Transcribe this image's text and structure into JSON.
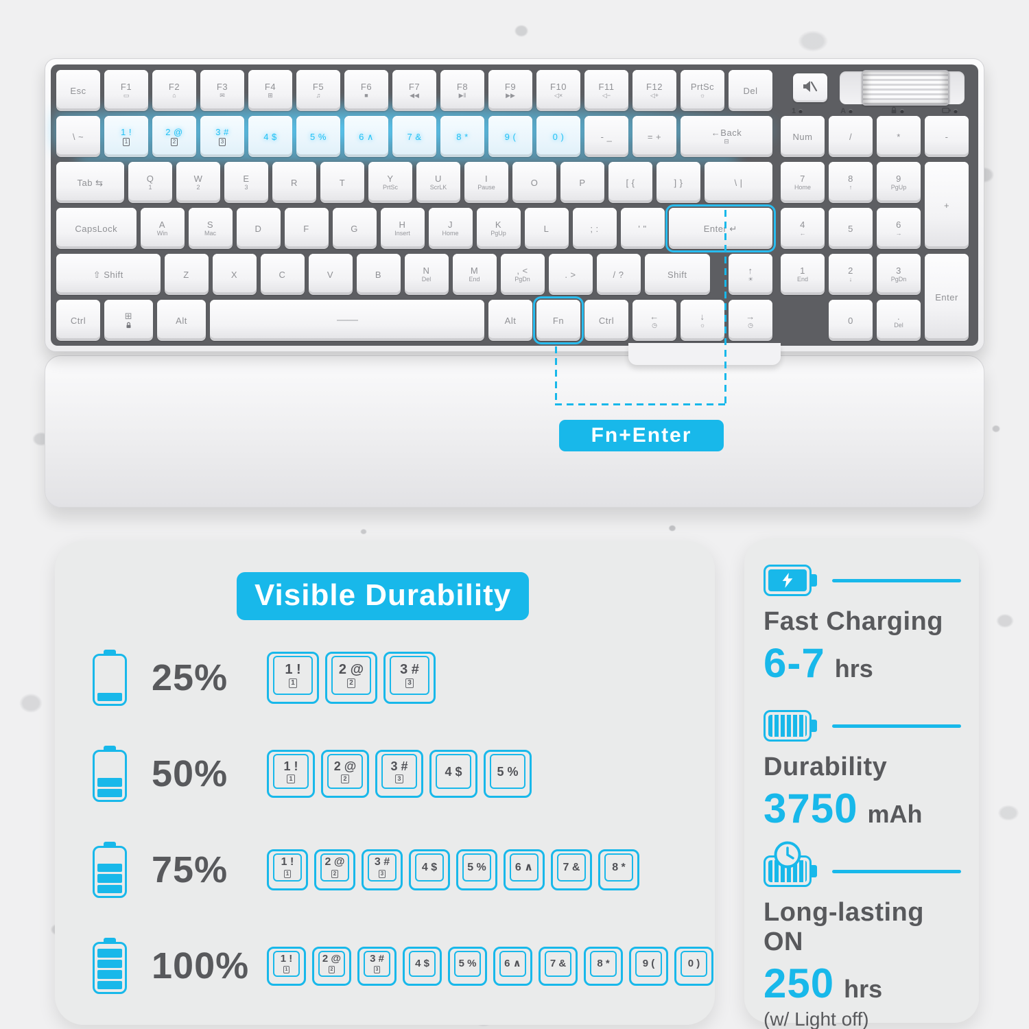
{
  "colors": {
    "accent": "#18b8ea",
    "glow": "#56d0ff",
    "key_text": "#8f9094",
    "dark_text": "#58595c"
  },
  "keyboard": {
    "main_rows": [
      [
        {
          "l": "Esc"
        },
        {
          "l": "F1",
          "s": "▭"
        },
        {
          "l": "F2",
          "s": "⌂"
        },
        {
          "l": "F3",
          "s": "✉"
        },
        {
          "l": "F4",
          "s": "⊞",
          "n": "f4"
        },
        {
          "l": "F5",
          "s": "♫"
        },
        {
          "l": "F6",
          "s": "■"
        },
        {
          "l": "F7",
          "s": "◀◀"
        },
        {
          "l": "F8",
          "s": "▶‖"
        },
        {
          "l": "F9",
          "s": "▶▶"
        },
        {
          "l": "F10",
          "s": "◁×"
        },
        {
          "l": "F11",
          "s": "◁−"
        },
        {
          "l": "F12",
          "s": "◁+"
        },
        {
          "l": "PrtSc",
          "s": "☼"
        },
        {
          "l": "Del"
        }
      ],
      [
        {
          "l": "\\ ~",
          "n": "backslash-tilde"
        },
        {
          "l": "1 !",
          "s": "1",
          "lit": 1,
          "box": 1,
          "n": "1"
        },
        {
          "l": "2 @",
          "s": "2",
          "lit": 1,
          "box": 1,
          "n": "2"
        },
        {
          "l": "3 #",
          "s": "3",
          "lit": 1,
          "box": 1,
          "n": "3"
        },
        {
          "l": "4 $",
          "lit": 1,
          "n": "4"
        },
        {
          "l": "5 %",
          "lit": 1,
          "n": "5"
        },
        {
          "l": "6 ∧",
          "lit": 1,
          "n": "6"
        },
        {
          "l": "7 &",
          "lit": 1,
          "n": "7"
        },
        {
          "l": "8 *",
          "lit": 1,
          "n": "8"
        },
        {
          "l": "9 (",
          "lit": 1,
          "n": "9"
        },
        {
          "l": "0 )",
          "lit": 1,
          "n": "0"
        },
        {
          "l": "- _",
          "n": "minus"
        },
        {
          "l": "= +",
          "n": "equals"
        },
        {
          "l": "←Back",
          "s": "⊟",
          "w": 2,
          "n": "back"
        }
      ],
      [
        {
          "l": "Tab ⇆",
          "w": 1.5,
          "n": "tab"
        },
        {
          "l": "Q",
          "s": "1"
        },
        {
          "l": "W",
          "s": "2"
        },
        {
          "l": "E",
          "s": "3"
        },
        {
          "l": "R"
        },
        {
          "l": "T"
        },
        {
          "l": "Y",
          "s": "PrtSc"
        },
        {
          "l": "U",
          "s": "ScrLK"
        },
        {
          "l": "I",
          "s": "Pause"
        },
        {
          "l": "O"
        },
        {
          "l": "P"
        },
        {
          "l": "[ {",
          "n": "bracket-open"
        },
        {
          "l": "] }",
          "n": "bracket-close"
        },
        {
          "l": "\\ |",
          "w": 1.5,
          "n": "backslash-pipe"
        }
      ],
      [
        {
          "l": "CapsLock",
          "w": 1.75
        },
        {
          "l": "A",
          "s": "Win"
        },
        {
          "l": "S",
          "s": "Mac"
        },
        {
          "l": "D"
        },
        {
          "l": "F"
        },
        {
          "l": "G"
        },
        {
          "l": "H",
          "s": "Insert"
        },
        {
          "l": "J",
          "s": "Home"
        },
        {
          "l": "K",
          "s": "PgUp"
        },
        {
          "l": "L"
        },
        {
          "l": "; :",
          "n": "semicolon"
        },
        {
          "l": "' \"",
          "n": "quote"
        },
        {
          "l": "Enter ↵",
          "w": 2.25,
          "hl": 1,
          "n": "enter"
        }
      ],
      [
        {
          "l": "⇧ Shift",
          "w": 2.25,
          "n": "shift-left"
        },
        {
          "l": "Z"
        },
        {
          "l": "X"
        },
        {
          "l": "C"
        },
        {
          "l": "V"
        },
        {
          "l": "B"
        },
        {
          "l": "N",
          "s": "Del"
        },
        {
          "l": "M",
          "s": "End"
        },
        {
          "l": ", <",
          "s": "PgDn",
          "n": "comma"
        },
        {
          "l": ". >",
          "n": "period"
        },
        {
          "l": "/ ?",
          "n": "slash"
        },
        {
          "l": "Shift",
          "w": 1.45,
          "n": "shift-right"
        },
        {
          "sp": 1,
          "w": 0.3
        },
        {
          "l": "↑",
          "s": "☀",
          "n": "arrow-up"
        }
      ],
      [
        {
          "l": "Ctrl",
          "n": "ctrl-left"
        },
        {
          "l": "⊞",
          "s": "@lock",
          "w": 1.1,
          "n": "win"
        },
        {
          "l": "Alt",
          "w": 1.1,
          "n": "alt-left"
        },
        {
          "l": "——",
          "w": 5.8,
          "space": 1,
          "n": "spacebar"
        },
        {
          "l": "Alt",
          "n": "alt-right"
        },
        {
          "l": "Fn",
          "hl": 1
        },
        {
          "l": "Ctrl",
          "n": "ctrl-right"
        },
        {
          "l": "←",
          "s": "◷",
          "n": "arrow-left"
        },
        {
          "l": "↓",
          "s": "☼",
          "n": "arrow-down"
        },
        {
          "l": "→",
          "s": "◷",
          "n": "arrow-right"
        }
      ]
    ],
    "numpad": [
      {
        "l": "Num"
      },
      {
        "l": "/",
        "n": "np-divide"
      },
      {
        "l": "*",
        "n": "np-multiply"
      },
      {
        "l": "-",
        "n": "np-minus"
      },
      {
        "l": "7",
        "s": "Home",
        "n": "np-7"
      },
      {
        "l": "8",
        "s": "↑",
        "n": "np-8"
      },
      {
        "l": "9",
        "s": "PgUp",
        "n": "np-9"
      },
      {
        "l": "+",
        "rs": 2,
        "n": "np-plus"
      },
      {
        "l": "4",
        "s": "←",
        "n": "np-4"
      },
      {
        "l": "5",
        "n": "np-5"
      },
      {
        "l": "6",
        "s": "→",
        "n": "np-6"
      },
      {
        "l": "1",
        "s": "End",
        "n": "np-1"
      },
      {
        "l": "2",
        "s": "↓",
        "n": "np-2"
      },
      {
        "l": "3",
        "s": "PgDn",
        "n": "np-3"
      },
      {
        "l": "Enter",
        "rs": 2,
        "n": "np-enter"
      },
      {
        "sp": 1
      },
      {
        "l": "0",
        "n": "np-0"
      },
      {
        "l": ".",
        "s": "Del",
        "n": "np-dot"
      }
    ],
    "indicators": [
      {
        "label": "1"
      },
      {
        "label": "A"
      },
      {
        "icon": "lock-indicator-icon"
      },
      {
        "icon": "battery-indicator-icon"
      }
    ],
    "callout_label": "Fn+Enter"
  },
  "durability": {
    "title": "Visible Durability",
    "rows": [
      {
        "percent": "25%",
        "battery_level": 1,
        "keys": [
          {
            "t": "1 !",
            "b": "1"
          },
          {
            "t": "2 @",
            "b": "2"
          },
          {
            "t": "3 #",
            "b": "3"
          }
        ]
      },
      {
        "percent": "50%",
        "battery_level": 2,
        "keys": [
          {
            "t": "1 !",
            "b": "1"
          },
          {
            "t": "2 @",
            "b": "2"
          },
          {
            "t": "3 #",
            "b": "3"
          },
          {
            "t": "4 $"
          },
          {
            "t": "5 %"
          }
        ]
      },
      {
        "percent": "75%",
        "battery_level": 3,
        "keys": [
          {
            "t": "1 !",
            "b": "1"
          },
          {
            "t": "2 @",
            "b": "2"
          },
          {
            "t": "3 #",
            "b": "3"
          },
          {
            "t": "4 $"
          },
          {
            "t": "5 %"
          },
          {
            "t": "6 ∧"
          },
          {
            "t": "7 &"
          },
          {
            "t": "8 *"
          }
        ]
      },
      {
        "percent": "100%",
        "battery_level": 4,
        "keys": [
          {
            "t": "1 !",
            "b": "1"
          },
          {
            "t": "2 @",
            "b": "2"
          },
          {
            "t": "3 #",
            "b": "3"
          },
          {
            "t": "4 $"
          },
          {
            "t": "5 %"
          },
          {
            "t": "6 ∧"
          },
          {
            "t": "7 &"
          },
          {
            "t": "8 *"
          },
          {
            "t": "9 ("
          },
          {
            "t": "0 )"
          }
        ]
      }
    ]
  },
  "stats": {
    "items": [
      {
        "icon": "fast-charging-battery-icon",
        "title": "Fast Charging",
        "value": "6-7",
        "unit": "hrs",
        "note": ""
      },
      {
        "icon": "full-battery-icon",
        "title": "Durability",
        "value": "3750",
        "unit": "mAh",
        "note": ""
      },
      {
        "icon": "battery-clock-icon",
        "title": "Long-lasting ON",
        "value": "250",
        "unit": "hrs",
        "note": "(w/ Light off)"
      }
    ]
  }
}
